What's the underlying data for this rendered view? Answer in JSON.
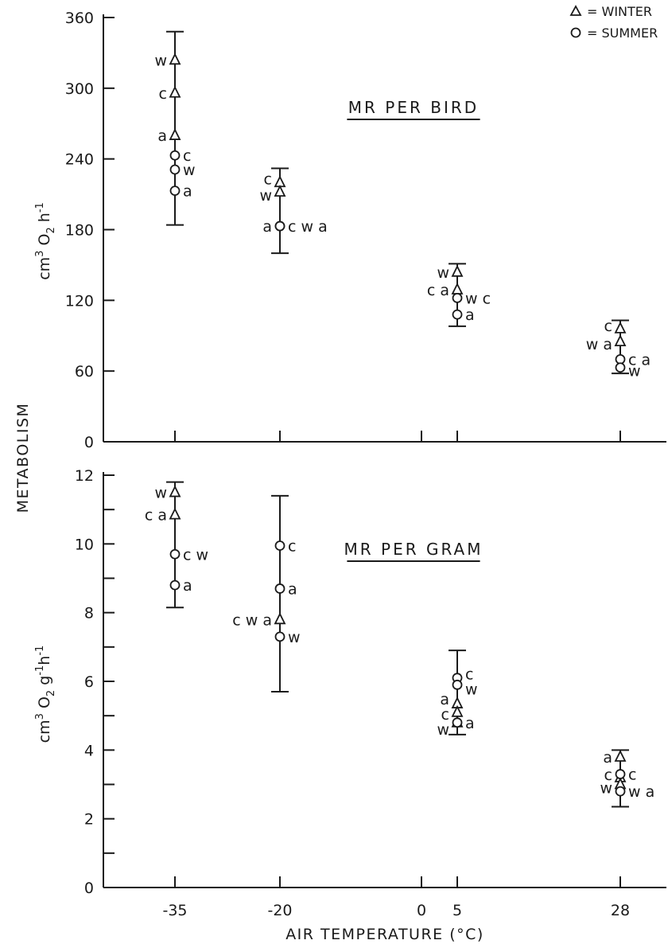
{
  "legend": [
    {
      "symbol": "triangle",
      "label": "= WINTER"
    },
    {
      "symbol": "circle",
      "label": "= SUMMER"
    }
  ],
  "shared_ylabel": "METABOLISM",
  "xlabel": "AIR TEMPERATURE (°C)",
  "chart_data": [
    {
      "type": "scatter",
      "title": "MR PER BIRD",
      "ylabel_parts": {
        "base": "cm",
        "sup1": "3",
        "mid": " O",
        "sub": "2",
        "end": " h",
        "sup2": "-1"
      },
      "ylim": [
        0,
        360
      ],
      "yticks": [
        0,
        60,
        120,
        180,
        240,
        300,
        360
      ],
      "ytick_labels": [
        "0",
        "60",
        "120",
        "180",
        "240",
        "300",
        "360"
      ],
      "xticks": [
        -35,
        -20,
        0,
        5,
        28
      ],
      "series": [
        {
          "name": "WINTER",
          "marker": "triangle",
          "points": [
            {
              "x": -35,
              "y": 324,
              "label": "w",
              "side": "left"
            },
            {
              "x": -35,
              "y": 296,
              "label": "c",
              "side": "left"
            },
            {
              "x": -35,
              "y": 260,
              "label": "a",
              "side": "left"
            },
            {
              "x": -20,
              "y": 220,
              "label": "c",
              "side": "left",
              "dy": -5
            },
            {
              "x": -20,
              "y": 212,
              "label": "w",
              "side": "left",
              "dy": 4
            },
            {
              "x": 5,
              "y": 144,
              "label": "w",
              "side": "left"
            },
            {
              "x": 5,
              "y": 129,
              "label": "c a",
              "side": "left"
            },
            {
              "x": 28,
              "y": 96,
              "label": "c",
              "side": "left",
              "dy": -4
            },
            {
              "x": 28,
              "y": 85,
              "label": "w a",
              "side": "left",
              "dy": 3
            }
          ]
        },
        {
          "name": "SUMMER",
          "marker": "circle",
          "points": [
            {
              "x": -35,
              "y": 243,
              "label": "c",
              "side": "right"
            },
            {
              "x": -35,
              "y": 231,
              "label": "w",
              "side": "right"
            },
            {
              "x": -35,
              "y": 213,
              "label": "a",
              "side": "right"
            },
            {
              "x": -20,
              "y": 183,
              "label": "a",
              "side": "left"
            },
            {
              "x": -20,
              "y": 183,
              "label": "c w a",
              "side": "right"
            },
            {
              "x": 5,
              "y": 122,
              "label": "w c",
              "side": "right"
            },
            {
              "x": 5,
              "y": 108,
              "label": "a",
              "side": "right"
            },
            {
              "x": 28,
              "y": 70,
              "label": "c a",
              "side": "right"
            },
            {
              "x": 28,
              "y": 63,
              "label": "w",
              "side": "right",
              "dy": 4
            }
          ]
        }
      ],
      "error_bars": [
        {
          "x": -35,
          "low": 184,
          "high": 348
        },
        {
          "x": -20,
          "low": 160,
          "high": 232
        },
        {
          "x": 5,
          "low": 98,
          "high": 151
        },
        {
          "x": 28,
          "low": 58,
          "high": 103
        }
      ]
    },
    {
      "type": "scatter",
      "title": "MR PER GRAM",
      "ylabel_parts": {
        "base": "cm",
        "sup1": "3",
        "mid": " O",
        "sub": "2",
        "end": " g",
        "sup2": "-1",
        "end2": "h",
        "sup3": "-1"
      },
      "ylim": [
        0,
        12
      ],
      "yticks": [
        0,
        1,
        2,
        3,
        4,
        5,
        6,
        7,
        8,
        9,
        10,
        11,
        12
      ],
      "ytick_labels": [
        "0",
        "",
        "2",
        "",
        "4",
        "",
        "6",
        "",
        "8",
        "",
        "10",
        "",
        "12"
      ],
      "xticks": [
        -35,
        -20,
        0,
        5,
        28
      ],
      "xtick_labels": [
        "-35",
        "-20",
        "0",
        "5",
        "28"
      ],
      "series": [
        {
          "name": "WINTER",
          "marker": "triangle",
          "points": [
            {
              "x": -35,
              "y": 11.5,
              "label": "w",
              "side": "left"
            },
            {
              "x": -35,
              "y": 10.85,
              "label": "c a",
              "side": "left"
            },
            {
              "x": -20,
              "y": 7.8,
              "label": "c w a",
              "side": "left"
            },
            {
              "x": 5,
              "y": 5.35,
              "label": "a",
              "side": "left",
              "dy": -6
            },
            {
              "x": 5,
              "y": 5.1,
              "label": "c",
              "side": "left",
              "dy": 2
            },
            {
              "x": 5,
              "y": 4.8,
              "label": "w",
              "side": "left",
              "dy": 8
            },
            {
              "x": 28,
              "y": 3.8,
              "label": "a",
              "side": "left"
            },
            {
              "x": 28,
              "y": 3.2,
              "label": "c",
              "side": "left",
              "dy": -4
            },
            {
              "x": 28,
              "y": 3.0,
              "label": "w",
              "side": "left",
              "dy": 4
            }
          ]
        },
        {
          "name": "SUMMER",
          "marker": "circle",
          "points": [
            {
              "x": -35,
              "y": 9.7,
              "label": "c w",
              "side": "right"
            },
            {
              "x": -35,
              "y": 8.8,
              "label": "a",
              "side": "right"
            },
            {
              "x": -20,
              "y": 9.95,
              "label": "c",
              "side": "right"
            },
            {
              "x": -20,
              "y": 8.7,
              "label": "a",
              "side": "right"
            },
            {
              "x": -20,
              "y": 7.3,
              "label": "w",
              "side": "right"
            },
            {
              "x": 5,
              "y": 6.1,
              "label": "c",
              "side": "right",
              "dy": -5
            },
            {
              "x": 5,
              "y": 5.9,
              "label": "w",
              "side": "right",
              "dy": 5
            },
            {
              "x": 5,
              "y": 4.8,
              "label": "a",
              "side": "right"
            },
            {
              "x": 28,
              "y": 3.3,
              "label": "c",
              "side": "right"
            },
            {
              "x": 28,
              "y": 2.8,
              "label": "w a",
              "side": "right"
            }
          ]
        }
      ],
      "error_bars": [
        {
          "x": -35,
          "low": 8.15,
          "high": 11.8
        },
        {
          "x": -20,
          "low": 5.7,
          "high": 11.4
        },
        {
          "x": 5,
          "low": 4.45,
          "high": 6.9
        },
        {
          "x": 28,
          "low": 2.35,
          "high": 4.0
        }
      ]
    }
  ]
}
